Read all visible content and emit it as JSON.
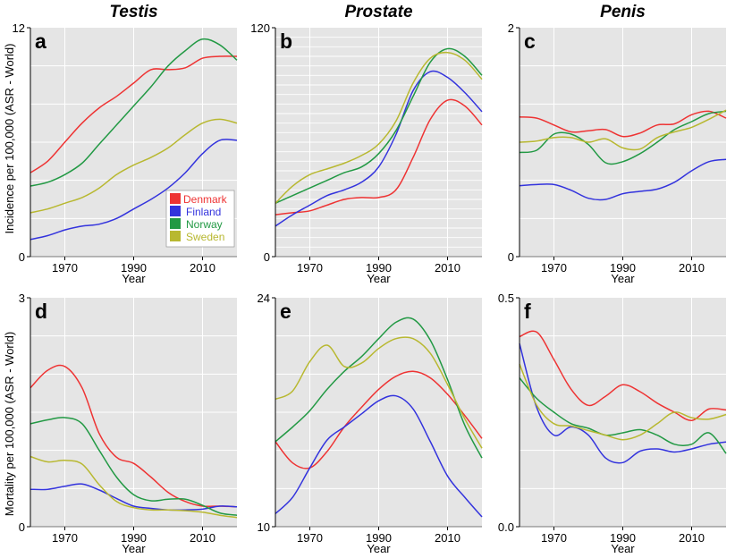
{
  "chart_data": [
    {
      "type": "line",
      "panel": "a",
      "title": "Testis",
      "xlabel": "Year",
      "ylabel": "Incidence per 100,000 (ASR - World)",
      "xlim": [
        1960,
        2020
      ],
      "ylim": [
        0,
        12
      ],
      "xticks": [
        "1970",
        "1990",
        "2010"
      ],
      "yticks": [
        "0",
        "12"
      ],
      "legend": {
        "position": "bottom-right",
        "entries": [
          "Denmark",
          "Finland",
          "Norway",
          "Sweden"
        ]
      },
      "series": [
        {
          "name": "Denmark",
          "color": "#ee3333",
          "x": [
            1960,
            1965,
            1970,
            1975,
            1980,
            1985,
            1990,
            1995,
            2000,
            2005,
            2010,
            2015,
            2020
          ],
          "y": [
            4.4,
            5.0,
            6.0,
            7.0,
            7.8,
            8.4,
            9.1,
            9.8,
            9.8,
            9.9,
            10.4,
            10.5,
            10.5
          ]
        },
        {
          "name": "Finland",
          "color": "#3333dd",
          "x": [
            1960,
            1965,
            1970,
            1975,
            1980,
            1985,
            1990,
            1995,
            2000,
            2005,
            2010,
            2015,
            2020
          ],
          "y": [
            0.9,
            1.1,
            1.4,
            1.6,
            1.7,
            2.0,
            2.5,
            3.0,
            3.6,
            4.4,
            5.4,
            6.1,
            6.1
          ]
        },
        {
          "name": "Norway",
          "color": "#229944",
          "x": [
            1960,
            1965,
            1970,
            1975,
            1980,
            1985,
            1990,
            1995,
            2000,
            2005,
            2010,
            2015,
            2020
          ],
          "y": [
            3.7,
            3.9,
            4.3,
            4.9,
            5.9,
            6.9,
            7.9,
            8.9,
            10.0,
            10.8,
            11.4,
            11.1,
            10.3
          ]
        },
        {
          "name": "Sweden",
          "color": "#b8b830",
          "x": [
            1960,
            1965,
            1970,
            1975,
            1980,
            1985,
            1990,
            1995,
            2000,
            2005,
            2010,
            2015,
            2020
          ],
          "y": [
            2.3,
            2.5,
            2.8,
            3.1,
            3.6,
            4.3,
            4.8,
            5.2,
            5.7,
            6.4,
            7.0,
            7.2,
            7.0
          ]
        }
      ]
    },
    {
      "type": "line",
      "panel": "b",
      "title": "Prostate",
      "xlabel": "Year",
      "ylabel": "",
      "xlim": [
        1960,
        2020
      ],
      "ylim": [
        0,
        120
      ],
      "xticks": [
        "1970",
        "1990",
        "2010"
      ],
      "yticks": [
        "0",
        "120"
      ],
      "series": [
        {
          "name": "Denmark",
          "color": "#ee3333",
          "x": [
            1960,
            1965,
            1970,
            1975,
            1980,
            1985,
            1990,
            1995,
            2000,
            2005,
            2010,
            2015,
            2020
          ],
          "y": [
            22,
            23,
            24,
            27,
            30,
            31,
            31,
            35,
            52,
            72,
            82,
            79,
            69
          ]
        },
        {
          "name": "Finland",
          "color": "#3333dd",
          "x": [
            1960,
            1965,
            1970,
            1975,
            1980,
            1985,
            1990,
            1995,
            2000,
            2005,
            2010,
            2015,
            2020
          ],
          "y": [
            16,
            22,
            27,
            32,
            35,
            39,
            47,
            64,
            87,
            97,
            94,
            86,
            76
          ]
        },
        {
          "name": "Norway",
          "color": "#229944",
          "x": [
            1960,
            1965,
            1970,
            1975,
            1980,
            1985,
            1990,
            1995,
            2000,
            2005,
            2010,
            2015,
            2020
          ],
          "y": [
            28,
            32,
            36,
            40,
            44,
            47,
            54,
            66,
            84,
            102,
            109,
            105,
            95
          ]
        },
        {
          "name": "Sweden",
          "color": "#b8b830",
          "x": [
            1960,
            1965,
            1970,
            1975,
            1980,
            1985,
            1990,
            1995,
            2000,
            2005,
            2010,
            2015,
            2020
          ],
          "y": [
            28,
            37,
            43,
            46,
            49,
            53,
            59,
            71,
            91,
            104,
            107,
            103,
            93
          ]
        }
      ]
    },
    {
      "type": "line",
      "panel": "c",
      "title": "Penis",
      "xlabel": "Year",
      "ylabel": "",
      "xlim": [
        1960,
        2020
      ],
      "ylim": [
        0,
        2
      ],
      "xticks": [
        "1970",
        "1990",
        "2010"
      ],
      "yticks": [
        "0",
        "2"
      ],
      "series": [
        {
          "name": "Denmark",
          "color": "#ee3333",
          "x": [
            1960,
            1965,
            1970,
            1975,
            1980,
            1985,
            1990,
            1995,
            2000,
            2005,
            2010,
            2015,
            2020
          ],
          "y": [
            1.22,
            1.21,
            1.15,
            1.09,
            1.1,
            1.11,
            1.05,
            1.08,
            1.15,
            1.16,
            1.24,
            1.27,
            1.21
          ]
        },
        {
          "name": "Finland",
          "color": "#3333dd",
          "x": [
            1960,
            1965,
            1970,
            1975,
            1980,
            1985,
            1990,
            1995,
            2000,
            2005,
            2010,
            2015,
            2020
          ],
          "y": [
            0.62,
            0.63,
            0.63,
            0.58,
            0.51,
            0.5,
            0.55,
            0.57,
            0.59,
            0.65,
            0.75,
            0.83,
            0.85
          ]
        },
        {
          "name": "Norway",
          "color": "#229944",
          "x": [
            1960,
            1965,
            1970,
            1975,
            1980,
            1985,
            1990,
            1995,
            2000,
            2005,
            2010,
            2015,
            2020
          ],
          "y": [
            0.91,
            0.93,
            1.07,
            1.07,
            0.98,
            0.82,
            0.83,
            0.9,
            1.0,
            1.11,
            1.18,
            1.25,
            1.27
          ]
        },
        {
          "name": "Sweden",
          "color": "#b8b830",
          "x": [
            1960,
            1965,
            1970,
            1975,
            1980,
            1985,
            1990,
            1995,
            2000,
            2005,
            2010,
            2015,
            2020
          ],
          "y": [
            1.0,
            1.01,
            1.04,
            1.04,
            1.0,
            1.03,
            0.95,
            0.94,
            1.04,
            1.09,
            1.13,
            1.2,
            1.28
          ]
        }
      ]
    },
    {
      "type": "line",
      "panel": "d",
      "title": "",
      "xlabel": "Year",
      "ylabel": "Mortality per 100,000 (ASR - World)",
      "xlim": [
        1960,
        2020
      ],
      "ylim": [
        0,
        3
      ],
      "xticks": [
        "1970",
        "1990",
        "2010"
      ],
      "yticks": [
        "0",
        "3"
      ],
      "series": [
        {
          "name": "Denmark",
          "color": "#ee3333",
          "x": [
            1960,
            1965,
            1970,
            1975,
            1980,
            1985,
            1990,
            1995,
            2000,
            2005,
            2010,
            2015,
            2020
          ],
          "y": [
            1.82,
            2.05,
            2.1,
            1.82,
            1.22,
            0.91,
            0.83,
            0.65,
            0.45,
            0.33,
            0.27,
            0.27,
            0.26
          ]
        },
        {
          "name": "Finland",
          "color": "#3333dd",
          "x": [
            1960,
            1965,
            1970,
            1975,
            1980,
            1985,
            1990,
            1995,
            2000,
            2005,
            2010,
            2015,
            2020
          ],
          "y": [
            0.49,
            0.49,
            0.53,
            0.56,
            0.48,
            0.37,
            0.27,
            0.24,
            0.22,
            0.22,
            0.23,
            0.27,
            0.26
          ]
        },
        {
          "name": "Norway",
          "color": "#229944",
          "x": [
            1960,
            1965,
            1970,
            1975,
            1980,
            1985,
            1990,
            1995,
            2000,
            2005,
            2010,
            2015,
            2020
          ],
          "y": [
            1.35,
            1.4,
            1.43,
            1.35,
            1.0,
            0.65,
            0.42,
            0.34,
            0.36,
            0.36,
            0.28,
            0.18,
            0.15
          ]
        },
        {
          "name": "Sweden",
          "color": "#b8b830",
          "x": [
            1960,
            1965,
            1970,
            1975,
            1980,
            1985,
            1990,
            1995,
            2000,
            2005,
            2010,
            2015,
            2020
          ],
          "y": [
            0.92,
            0.85,
            0.87,
            0.82,
            0.55,
            0.33,
            0.25,
            0.22,
            0.22,
            0.21,
            0.19,
            0.15,
            0.12
          ]
        }
      ]
    },
    {
      "type": "line",
      "panel": "e",
      "title": "",
      "xlabel": "Year",
      "ylabel": "",
      "xlim": [
        1960,
        2020
      ],
      "ylim": [
        10,
        24
      ],
      "xticks": [
        "1970",
        "1990",
        "2010"
      ],
      "yticks": [
        "10",
        "24"
      ],
      "series": [
        {
          "name": "Denmark",
          "color": "#ee3333",
          "x": [
            1960,
            1965,
            1970,
            1975,
            1980,
            1985,
            1990,
            1995,
            2000,
            2005,
            2010,
            2015,
            2020
          ],
          "y": [
            15.2,
            13.9,
            13.6,
            14.6,
            16.1,
            17.3,
            18.4,
            19.2,
            19.5,
            19.1,
            18.1,
            16.8,
            15.4
          ]
        },
        {
          "name": "Finland",
          "color": "#3333dd",
          "x": [
            1960,
            1965,
            1970,
            1975,
            1980,
            1985,
            1990,
            1995,
            2000,
            2005,
            2010,
            2015,
            2020
          ],
          "y": [
            10.8,
            11.8,
            13.6,
            15.3,
            16.1,
            16.9,
            17.7,
            18.0,
            17.2,
            15.2,
            13.1,
            11.8,
            10.6
          ]
        },
        {
          "name": "Norway",
          "color": "#229944",
          "x": [
            1960,
            1965,
            1970,
            1975,
            1980,
            1985,
            1990,
            1995,
            2000,
            2005,
            2010,
            2015,
            2020
          ],
          "y": [
            15.2,
            16.1,
            17.1,
            18.4,
            19.5,
            20.4,
            21.5,
            22.5,
            22.7,
            21.4,
            19.0,
            16.2,
            14.2
          ]
        },
        {
          "name": "Sweden",
          "color": "#b8b830",
          "x": [
            1960,
            1965,
            1970,
            1975,
            1980,
            1985,
            1990,
            1995,
            2000,
            2005,
            2010,
            2015,
            2020
          ],
          "y": [
            17.8,
            18.3,
            20.1,
            21.1,
            19.8,
            20.0,
            20.9,
            21.5,
            21.5,
            20.6,
            18.7,
            16.6,
            14.8
          ]
        }
      ]
    },
    {
      "type": "line",
      "panel": "f",
      "title": "",
      "xlabel": "Year",
      "ylabel": "",
      "xlim": [
        1960,
        2020
      ],
      "ylim": [
        0.0,
        0.5
      ],
      "xticks": [
        "1970",
        "1990",
        "2010"
      ],
      "yticks": [
        "0.0",
        "0.5"
      ],
      "series": [
        {
          "name": "Denmark",
          "color": "#ee3333",
          "x": [
            1960,
            1965,
            1970,
            1975,
            1980,
            1985,
            1990,
            1995,
            2000,
            2005,
            2010,
            2015,
            2020
          ],
          "y": [
            0.415,
            0.425,
            0.365,
            0.3,
            0.265,
            0.285,
            0.31,
            0.295,
            0.27,
            0.25,
            0.232,
            0.257,
            0.255
          ]
        },
        {
          "name": "Finland",
          "color": "#3333dd",
          "x": [
            1960,
            1965,
            1970,
            1975,
            1980,
            1985,
            1990,
            1995,
            2000,
            2005,
            2010,
            2015,
            2020
          ],
          "y": [
            0.4,
            0.26,
            0.2,
            0.218,
            0.2,
            0.15,
            0.14,
            0.165,
            0.17,
            0.163,
            0.17,
            0.18,
            0.185
          ]
        },
        {
          "name": "Norway",
          "color": "#229944",
          "x": [
            1960,
            1965,
            1970,
            1975,
            1980,
            1985,
            1990,
            1995,
            2000,
            2005,
            2010,
            2015,
            2020
          ],
          "y": [
            0.325,
            0.28,
            0.25,
            0.225,
            0.215,
            0.2,
            0.205,
            0.212,
            0.2,
            0.18,
            0.18,
            0.205,
            0.16
          ]
        },
        {
          "name": "Sweden",
          "color": "#b8b830",
          "x": [
            1960,
            1965,
            1970,
            1975,
            1980,
            1985,
            1990,
            1995,
            2000,
            2005,
            2010,
            2015,
            2020
          ],
          "y": [
            0.355,
            0.265,
            0.225,
            0.22,
            0.21,
            0.2,
            0.19,
            0.2,
            0.225,
            0.25,
            0.238,
            0.235,
            0.245
          ]
        }
      ]
    }
  ]
}
